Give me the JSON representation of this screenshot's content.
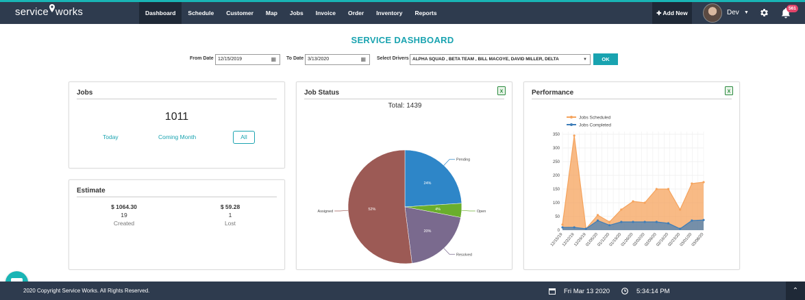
{
  "brand": {
    "name_left": "service",
    "name_right": "works"
  },
  "nav": {
    "items": [
      "Dashboard",
      "Schedule",
      "Customer",
      "Map",
      "Jobs",
      "Invoice",
      "Order",
      "Inventory",
      "Reports"
    ]
  },
  "header": {
    "add_new": "Add New",
    "user": "Dev",
    "notifications": "561"
  },
  "page_title": "SERVICE DASHBOARD",
  "filters": {
    "from_label": "From Date",
    "from_value": "12/15/2019",
    "to_label": "To Date",
    "to_value": "3/13/2020",
    "drivers_label": "Select Drivers",
    "drivers_value": "ALPHA SQUAD , BETA TEAM , BILL MACOYE, DAVID MILLER, DELTA",
    "ok": "OK"
  },
  "jobs_card": {
    "title": "Jobs",
    "count": "1011",
    "today": "Today",
    "coming_month": "Coming Month",
    "all": "All"
  },
  "estimate_card": {
    "title": "Estimate",
    "created": {
      "amount": "$ 1064.30",
      "count": "19",
      "label": "Created"
    },
    "lost": {
      "amount": "$ 59.28",
      "count": "1",
      "label": "Lost"
    }
  },
  "job_status_card": {
    "title": "Job Status",
    "total": "Total: 1439"
  },
  "performance_card": {
    "title": "Performance"
  },
  "footer": {
    "copyright": "2020 Copyright Service Works. All Rights Reserved.",
    "date": "Fri Mar 13 2020",
    "time": "5:34:14 PM"
  },
  "chart_data": [
    {
      "type": "pie",
      "title": "Total: 1439",
      "slices": [
        {
          "label": "Pending",
          "value": 24,
          "text": "24%",
          "color": "#2e86c8"
        },
        {
          "label": "Open",
          "value": 4,
          "text": "4%",
          "color": "#6aae2c"
        },
        {
          "label": "Resolved",
          "value": 20,
          "text": "20%",
          "color": "#7a6a8e"
        },
        {
          "label": "Assigned",
          "value": 52,
          "text": "52%",
          "color": "#9c5a55"
        }
      ]
    },
    {
      "type": "area",
      "categories": [
        "12/15/19",
        "12/22/19",
        "12/29/19",
        "01/05/20",
        "01/12/20",
        "01/19/20",
        "01/26/20",
        "02/02/20",
        "02/09/20",
        "02/16/20",
        "02/23/20",
        "03/01/20",
        "03/08/20"
      ],
      "x_points": [
        0,
        1,
        2,
        3,
        4,
        5,
        6,
        7,
        8,
        9,
        10,
        11,
        12,
        13,
        14,
        15,
        16,
        17,
        18,
        19,
        20,
        21,
        22,
        23,
        24,
        25
      ],
      "series": [
        {
          "name": "Jobs Scheduled",
          "color": "#f5a35c",
          "values": [
            20,
            345,
            5,
            55,
            30,
            75,
            105,
            100,
            150,
            150,
            75,
            170,
            175
          ]
        },
        {
          "name": "Jobs Completed",
          "color": "#3d7db8",
          "values": [
            10,
            10,
            5,
            35,
            18,
            30,
            30,
            30,
            30,
            25,
            5,
            35,
            37
          ]
        }
      ],
      "yticks": [
        0,
        50,
        100,
        150,
        200,
        250,
        300,
        350
      ],
      "ylim": [
        0,
        360
      ],
      "grid": true,
      "legend_position": "top-left"
    }
  ]
}
